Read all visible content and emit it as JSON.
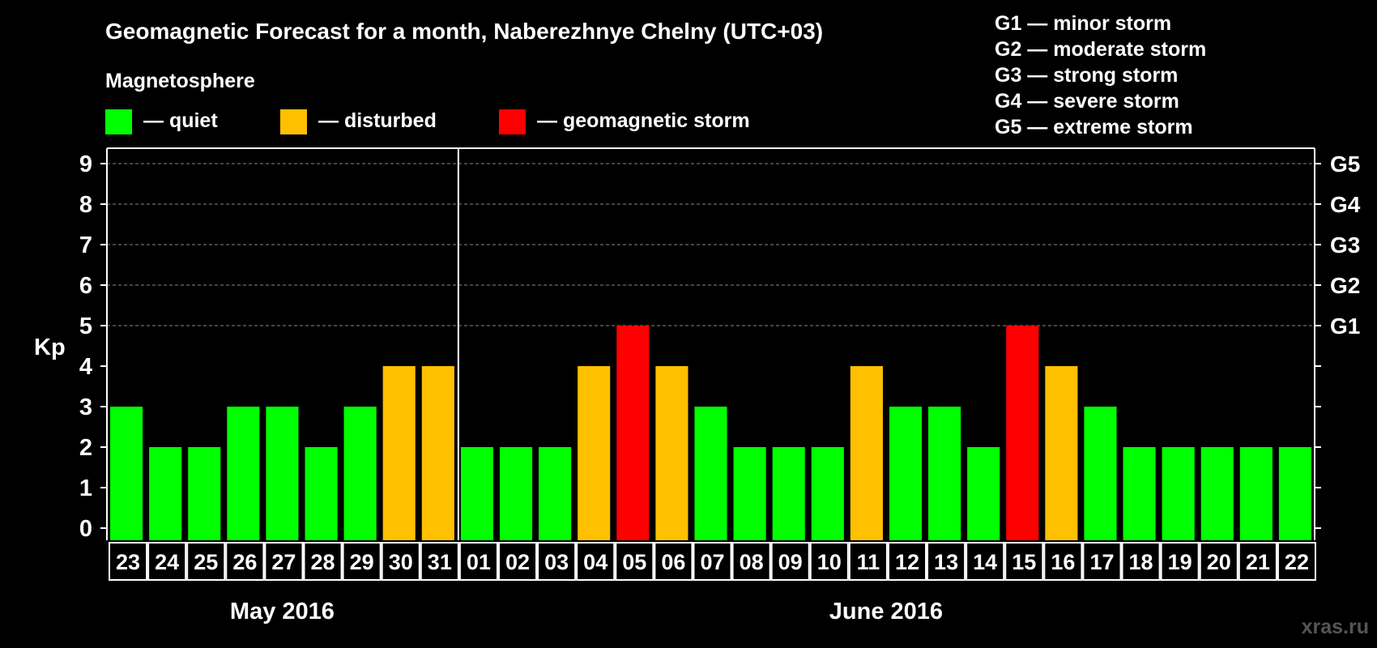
{
  "title": "Geomagnetic Forecast for a month, Naberezhnye Chelny (UTC+03)",
  "legend": {
    "heading": "Magnetosphere",
    "items": [
      {
        "label": "— quiet",
        "color": "#00ff00"
      },
      {
        "label": "— disturbed",
        "color": "#ffc000"
      },
      {
        "label": "— geomagnetic storm",
        "color": "#ff0000"
      }
    ]
  },
  "storm_scale": [
    "G1 — minor storm",
    "G2 — moderate storm",
    "G3 — strong storm",
    "G4 — severe storm",
    "G5 — extreme storm"
  ],
  "watermark": "xras.ru",
  "chart_data": {
    "type": "bar",
    "ylabel": "Kp",
    "ylim": [
      0,
      9
    ],
    "y_ticks": [
      0,
      1,
      2,
      3,
      4,
      5,
      6,
      7,
      8,
      9
    ],
    "right_axis_labels": [
      {
        "value": 5,
        "label": "G1"
      },
      {
        "value": 6,
        "label": "G2"
      },
      {
        "value": 7,
        "label": "G3"
      },
      {
        "value": 8,
        "label": "G4"
      },
      {
        "value": 9,
        "label": "G5"
      }
    ],
    "grid": "dashed horizontal at Kp 5-9",
    "months": [
      {
        "label": "May 2016",
        "start_index": 0,
        "count": 9
      },
      {
        "label": "June 2016",
        "start_index": 9,
        "count": 22
      }
    ],
    "categories": [
      "23",
      "24",
      "25",
      "26",
      "27",
      "28",
      "29",
      "30",
      "31",
      "01",
      "02",
      "03",
      "04",
      "05",
      "06",
      "07",
      "08",
      "09",
      "10",
      "11",
      "12",
      "13",
      "14",
      "15",
      "16",
      "17",
      "18",
      "19",
      "20",
      "21",
      "22"
    ],
    "values": [
      3,
      2,
      2,
      3,
      3,
      2,
      3,
      4,
      4,
      2,
      2,
      2,
      4,
      5,
      4,
      3,
      2,
      2,
      2,
      4,
      3,
      3,
      2,
      5,
      4,
      3,
      2,
      2,
      2,
      2,
      2
    ],
    "color_thresholds": {
      "quiet_max": 3,
      "disturbed": 4,
      "storm_min": 5
    }
  }
}
